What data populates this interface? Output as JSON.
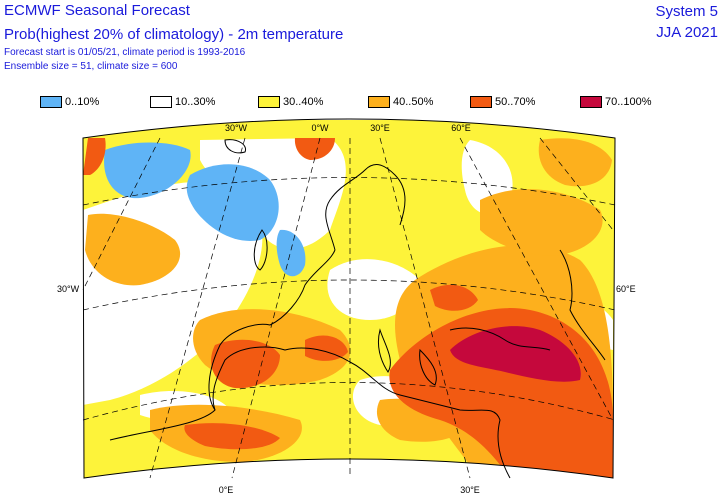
{
  "header": {
    "title": "ECMWF Seasonal Forecast",
    "subtitle": "Prob(highest 20% of climatology) - 2m temperature",
    "forecast_info": "Forecast start is 01/05/21, climate period is 1993-2016",
    "ensemble_info": "Ensemble size = 51, climate size = 600",
    "system": "System 5",
    "season": "JJA 2021"
  },
  "legend": [
    {
      "label": "0..10%",
      "color": "#5fb4f6"
    },
    {
      "label": "10..30%",
      "color": "#ffffff"
    },
    {
      "label": "30..40%",
      "color": "#fdf33a"
    },
    {
      "label": "40..50%",
      "color": "#fdb01d"
    },
    {
      "label": "50..70%",
      "color": "#f25a12"
    },
    {
      "label": "70..100%",
      "color": "#c5083c"
    }
  ],
  "graticule_labels": {
    "top": [
      "30°W",
      "0°W",
      "30°E",
      "60°E"
    ],
    "left": "30°W",
    "right": "60°E",
    "bottom": [
      "0°E",
      "30°E"
    ]
  }
}
